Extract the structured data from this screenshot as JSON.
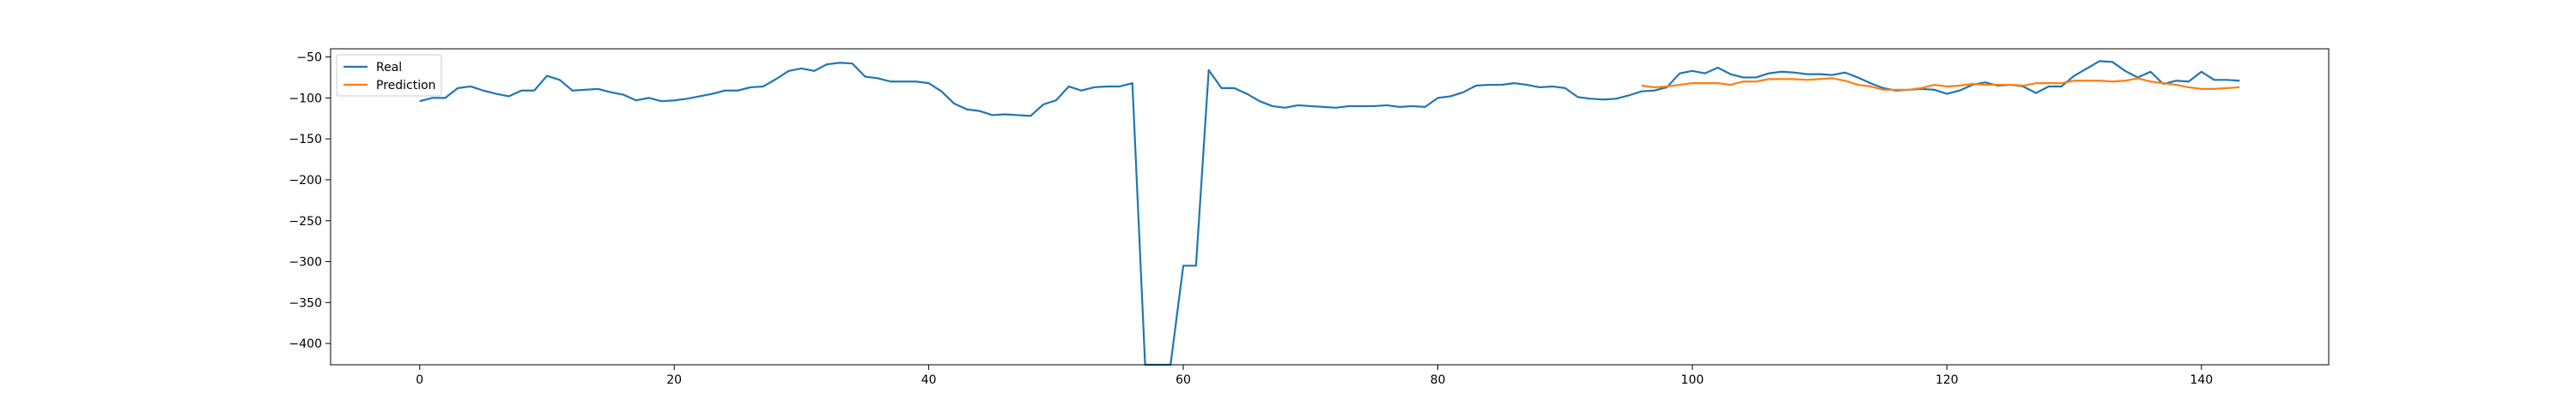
{
  "chart_data": {
    "type": "line",
    "title": "",
    "xlabel": "",
    "ylabel": "",
    "xlim": [
      -7,
      150
    ],
    "ylim": [
      -426,
      -40
    ],
    "xticks": [
      0,
      20,
      40,
      60,
      80,
      100,
      120,
      140
    ],
    "yticks": [
      -50,
      -100,
      -150,
      -200,
      -250,
      -300,
      -350,
      -400
    ],
    "xtick_labels": [
      "0",
      "20",
      "40",
      "60",
      "80",
      "100",
      "120",
      "140"
    ],
    "ytick_labels": [
      "−50",
      "−100",
      "−150",
      "−200",
      "−250",
      "−300",
      "−350",
      "−400"
    ],
    "grid": false,
    "legend_position": "top-left",
    "series": [
      {
        "name": "Real",
        "color": "#1f77b4",
        "x_start": 0,
        "values": [
          -104,
          -100,
          -100,
          -88,
          -86,
          -91,
          -95,
          -98,
          -91,
          -91,
          -73,
          -78,
          -91,
          -90,
          -89,
          -93,
          -96,
          -103,
          -100,
          -104,
          -103,
          -101,
          -98,
          -95,
          -91,
          -91,
          -87,
          -86,
          -77,
          -67,
          -64,
          -67,
          -59,
          -57,
          -58,
          -74,
          -76,
          -80,
          -80,
          -80,
          -82,
          -92,
          -107,
          -114,
          -116,
          -121,
          -120,
          -121,
          -122,
          -108,
          -103,
          -86,
          -91,
          -87,
          -86,
          -86,
          -82,
          -426,
          -426,
          -426,
          -305,
          -305,
          -66,
          -88,
          -88,
          -95,
          -104,
          -110,
          -112,
          -109,
          -110,
          -111,
          -112,
          -110,
          -110,
          -110,
          -109,
          -111,
          -110,
          -111,
          -100,
          -98,
          -93,
          -85,
          -84,
          -84,
          -82,
          -84,
          -87,
          -86,
          -88,
          -99,
          -101,
          -102,
          -101,
          -97,
          -92,
          -91,
          -87,
          -70,
          -67,
          -70,
          -63,
          -71,
          -75,
          -75,
          -70,
          -68,
          -69,
          -71,
          -71,
          -72,
          -69,
          -75,
          -82,
          -88,
          -91,
          -90,
          -89,
          -90,
          -95,
          -91,
          -84,
          -81,
          -85,
          -84,
          -86,
          -94,
          -86,
          -86,
          -73,
          -64,
          -55,
          -56,
          -67,
          -75,
          -68,
          -83,
          -79,
          -80,
          -68,
          -78,
          -78,
          -79
        ]
      },
      {
        "name": "Prediction",
        "color": "#ff7f0e",
        "x_start": 96,
        "values": [
          -85,
          -87,
          -86,
          -84,
          -82,
          -82,
          -82,
          -84,
          -80,
          -80,
          -77,
          -77,
          -77,
          -78,
          -77,
          -76,
          -79,
          -84,
          -86,
          -90,
          -90,
          -90,
          -88,
          -84,
          -86,
          -85,
          -83,
          -84,
          -84,
          -84,
          -85,
          -82,
          -82,
          -82,
          -79,
          -79,
          -79,
          -80,
          -79,
          -76,
          -80,
          -82,
          -84,
          -87,
          -89,
          -89,
          -88,
          -87
        ]
      }
    ]
  }
}
